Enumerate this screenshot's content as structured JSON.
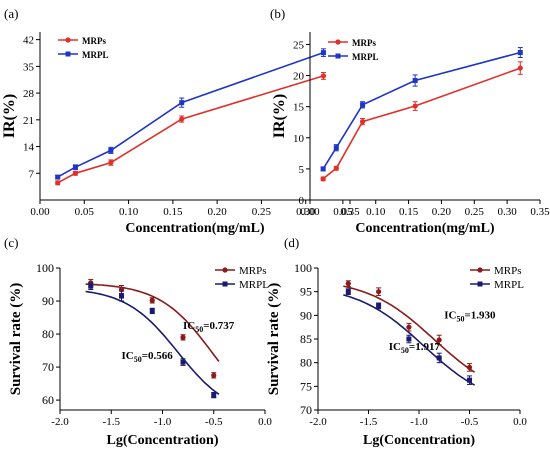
{
  "chart_data": [
    {
      "panel_label": "(a)",
      "type": "line",
      "xlabel": "Concentration(mg/mL)",
      "ylabel": "IR(%)",
      "xlim": [
        0.0,
        0.35
      ],
      "ylim": [
        0,
        44
      ],
      "xticks": [
        0.0,
        0.05,
        0.1,
        0.15,
        0.2,
        0.25,
        0.3,
        0.35
      ],
      "yticks": [
        7,
        14,
        21,
        28,
        35,
        42
      ],
      "xtick_labels": [
        "0.00",
        "0.05",
        "0.10",
        "0.15",
        "0.20",
        "0.25",
        "0.30",
        "0.35"
      ],
      "ytick_labels": [
        "7",
        "14",
        "21",
        "28",
        "35",
        "42"
      ],
      "legend_position": "top-left",
      "series": [
        {
          "name": "MRPs",
          "color": "#e0302a",
          "marker": "circle",
          "x": [
            0.02,
            0.04,
            0.08,
            0.16,
            0.32
          ],
          "y": [
            4.5,
            7.0,
            9.8,
            21.2,
            32.5
          ],
          "err": [
            0.5,
            0.5,
            0.7,
            0.8,
            0.9
          ]
        },
        {
          "name": "MRPL",
          "color": "#1f35c8",
          "marker": "square",
          "x": [
            0.02,
            0.04,
            0.08,
            0.16,
            0.32
          ],
          "y": [
            6.0,
            8.6,
            13.0,
            25.5,
            38.6
          ],
          "err": [
            0.4,
            0.6,
            0.8,
            1.2,
            1.0
          ]
        }
      ]
    },
    {
      "panel_label": "(b)",
      "type": "line",
      "xlabel": "Concentration(mg/mL)",
      "ylabel": "IR(%)",
      "xlim": [
        0.0,
        0.35
      ],
      "ylim": [
        0,
        27
      ],
      "xticks": [
        0.0,
        0.05,
        0.1,
        0.15,
        0.2,
        0.25,
        0.3,
        0.35
      ],
      "yticks": [
        0,
        5,
        10,
        15,
        20,
        25
      ],
      "xtick_labels": [
        "0.00",
        "0.05",
        "0.10",
        "0.15",
        "0.20",
        "0.25",
        "0.30",
        "0.35"
      ],
      "ytick_labels": [
        "0",
        "5",
        "10",
        "15",
        "20",
        "25"
      ],
      "legend_position": "top-left",
      "series": [
        {
          "name": "MRPs",
          "color": "#e0302a",
          "marker": "circle",
          "x": [
            0.02,
            0.04,
            0.08,
            0.16,
            0.32
          ],
          "y": [
            3.4,
            5.1,
            12.6,
            15.1,
            21.2
          ],
          "err": [
            0.3,
            0.3,
            0.5,
            0.7,
            1.0
          ]
        },
        {
          "name": "MRPL",
          "color": "#1f35c8",
          "marker": "square",
          "x": [
            0.02,
            0.04,
            0.08,
            0.16,
            0.32
          ],
          "y": [
            5.0,
            8.4,
            15.3,
            19.2,
            23.7
          ],
          "err": [
            0.3,
            0.5,
            0.5,
            0.9,
            0.8
          ]
        }
      ]
    },
    {
      "panel_label": "(c)",
      "type": "scatter",
      "xlabel": "Lg(Concentration)",
      "ylabel": "Survival rate (%)",
      "xlim": [
        -2.0,
        0.0
      ],
      "ylim": [
        57,
        100
      ],
      "xticks": [
        -2.0,
        -1.5,
        -1.0,
        -0.5,
        0.0
      ],
      "yticks": [
        60,
        70,
        80,
        90,
        100
      ],
      "xtick_labels": [
        "-2.0",
        "-1.5",
        "-1.0",
        "-0.5",
        "0.0"
      ],
      "ytick_labels": [
        "60",
        "70",
        "80",
        "90",
        "100"
      ],
      "legend_position": "top-right",
      "annotations": [
        {
          "text": "IC",
          "sub": "50",
          "tail": "=0.737",
          "x": -0.8,
          "y": 81.5
        },
        {
          "text": "IC",
          "sub": "50",
          "tail": "=0.566",
          "x": -1.4,
          "y": 72.5
        }
      ],
      "series": [
        {
          "name": "MRPs",
          "color": "#8b1a1a",
          "marker": "circle",
          "x": [
            -1.7,
            -1.4,
            -1.1,
            -0.8,
            -0.5
          ],
          "y": [
            95.5,
            93.5,
            90.2,
            79.0,
            67.5
          ],
          "err": [
            1.0,
            1.2,
            0.8,
            0.8,
            0.8
          ],
          "fit": {
            "top": 95.5,
            "bottom": 52.0,
            "log_ec50": -0.5,
            "hill": 1.65
          }
        },
        {
          "name": "MRPL",
          "color": "#1a1a6e",
          "marker": "square",
          "x": [
            -1.7,
            -1.4,
            -1.1,
            -0.8,
            -0.5
          ],
          "y": [
            94.5,
            91.5,
            87.0,
            71.5,
            61.5
          ],
          "err": [
            1.0,
            1.5,
            0.8,
            1.0,
            0.8
          ],
          "fit": {
            "top": 94.0,
            "bottom": 55.0,
            "log_ec50": -0.85,
            "hill": 1.7
          }
        }
      ]
    },
    {
      "panel_label": "(d)",
      "type": "scatter",
      "xlabel": "Lg(Concentration)",
      "ylabel": "Survival rate (%)",
      "xlim": [
        -2.0,
        0.0
      ],
      "ylim": [
        70,
        100
      ],
      "xticks": [
        -2.0,
        -1.5,
        -1.0,
        -0.5,
        0.0
      ],
      "yticks": [
        70,
        75,
        80,
        85,
        90,
        95,
        100
      ],
      "xtick_labels": [
        "-2.0",
        "-1.5",
        "-1.0",
        "-0.5",
        "0.0"
      ],
      "ytick_labels": [
        "70",
        "75",
        "80",
        "85",
        "90",
        "95",
        "100"
      ],
      "legend_position": "top-right",
      "annotations": [
        {
          "text": "IC",
          "sub": "50",
          "tail": "=1.930",
          "x": -0.75,
          "y": 89.3
        },
        {
          "text": "IC",
          "sub": "50",
          "tail": "=1.917",
          "x": -1.3,
          "y": 82.7
        }
      ],
      "series": [
        {
          "name": "MRPs",
          "color": "#8b1a1a",
          "marker": "circle",
          "x": [
            -1.7,
            -1.4,
            -1.1,
            -0.8,
            -0.5
          ],
          "y": [
            96.7,
            95.0,
            87.5,
            84.8,
            79.0
          ],
          "err": [
            0.6,
            0.8,
            0.8,
            1.0,
            0.8
          ],
          "fit": {
            "top": 97.8,
            "bottom": 72.0,
            "log_ec50": -0.85,
            "hill": 1.3
          }
        },
        {
          "name": "MRPL",
          "color": "#1a1a6e",
          "marker": "square",
          "x": [
            -1.7,
            -1.4,
            -1.1,
            -0.8,
            -0.5
          ],
          "y": [
            95.0,
            92.0,
            85.0,
            81.0,
            76.3
          ],
          "err": [
            0.6,
            0.6,
            0.8,
            1.0,
            0.9
          ],
          "fit": {
            "top": 96.5,
            "bottom": 70.5,
            "log_ec50": -0.95,
            "hill": 1.3
          }
        }
      ]
    }
  ]
}
